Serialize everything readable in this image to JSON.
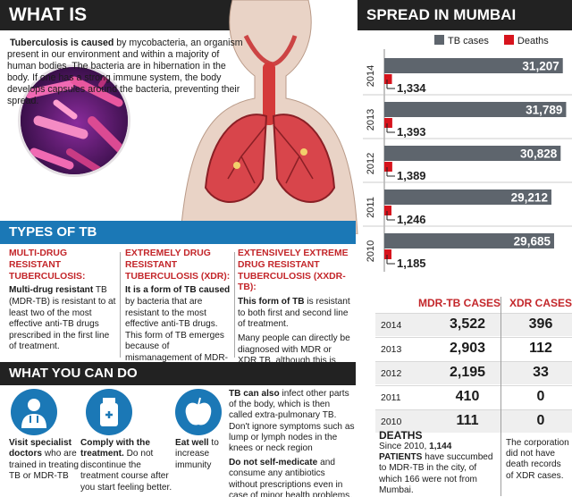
{
  "title": "WHAT IS TUBERCULOSIS?",
  "intro": {
    "lead": "Tuberculosis is caused",
    "text": " by mycobacteria, an organism present in our environment and within a majority of human bodies. The bacteria are in hibernation in the body. If one has a strong immune system, the body develops capsules around the bacteria, preventing their spread."
  },
  "types": {
    "header": "TYPES OF TB",
    "mdr": {
      "heading": "MULTI-DRUG RESISTANT TUBERCULOSIS:",
      "lead": "Multi-drug resistant",
      "text": " TB (MDR-TB) is resistant to at least two of the most effective anti-TB drugs prescribed in the first line of treatment."
    },
    "xdr": {
      "heading": "EXTREMELY DRUG RESISTANT TUBERCULOSIS (XDR):",
      "lead": "It is a form of TB caused",
      "text": " by bacteria that are resistant to the most effective anti-TB drugs. This form of TB emerges because of mismanagement of MDR-TB."
    },
    "xxdr": {
      "heading": "EXTENSIVELY EXTREME DRUG RESISTANT TUBERCULOSIS (XXDR-TB):",
      "lead": "This form of TB",
      "text": " is resistant to both first and second line of treatment.",
      "text2": "Many people can directly be diagnosed with MDR or XDR TB, although this is rare."
    }
  },
  "what_you_can_do": {
    "header": "WHAT YOU CAN DO",
    "item1_lead": "Visit specialist doctors",
    "item1_text": " who are trained in treating TB or MDR-TB",
    "item2_lead": "Comply with the treatment.",
    "item2_text": " Do not discontinue the treatment course after you start feeling better.",
    "item3_lead": "Eat well",
    "item3_text": " to increase immunity",
    "extra_lead": "TB can also",
    "extra_text": " infect other parts of the body, which is then called extra-pulmonary TB. Don't ignore symptoms such as lump or lymph nodes in the knees or neck region",
    "self_med_lead": "Do not self-medicate",
    "self_med_text": " and consume any antibiotics without prescriptions even in case of minor health problems."
  },
  "spread": {
    "title": "SPREAD IN MUMBAI",
    "legend_tb": "TB cases",
    "legend_deaths": "Deaths"
  },
  "chart_data": {
    "type": "bar",
    "title": "SPREAD IN MUMBAI",
    "orientation": "horizontal",
    "categories": [
      "2014",
      "2013",
      "2012",
      "2011",
      "2010"
    ],
    "series": [
      {
        "name": "TB cases",
        "values": [
          31207,
          31789,
          30828,
          29212,
          29685
        ],
        "labels": [
          "31,207",
          "31,789",
          "30,828",
          "29,212",
          "29,685"
        ]
      },
      {
        "name": "Deaths",
        "values": [
          1334,
          1393,
          1389,
          1246,
          1185
        ],
        "labels": [
          "1,334",
          "1,393",
          "1,389",
          "1,246",
          "1,185"
        ]
      }
    ],
    "colors": {
      "tb": "#5e656d",
      "deaths": "#d7141d"
    }
  },
  "cases_table": {
    "col_mdr": "MDR-TB CASES",
    "col_xdr": "XDR CASES",
    "rows": [
      {
        "year": "2014",
        "mdr": "3,522",
        "xdr": "396"
      },
      {
        "year": "2013",
        "mdr": "2,903",
        "xdr": "112"
      },
      {
        "year": "2012",
        "mdr": "2,195",
        "xdr": "33"
      },
      {
        "year": "2011",
        "mdr": "410",
        "xdr": "0"
      },
      {
        "year": "2010",
        "mdr": "111",
        "xdr": "0"
      }
    ]
  },
  "deaths": {
    "label": "DEATHS",
    "lead": "Since 2010, ",
    "bold": "1,144 PATIENTS",
    "text": " have succumbed to MDR-TB in the city, of which 166 were not from Mumbai.",
    "xdr_note": "The corporation did not have death records of XDR cases."
  },
  "accent_colors": {
    "blue": "#1b78b6",
    "red": "#c3262a",
    "dark": "#222222"
  }
}
